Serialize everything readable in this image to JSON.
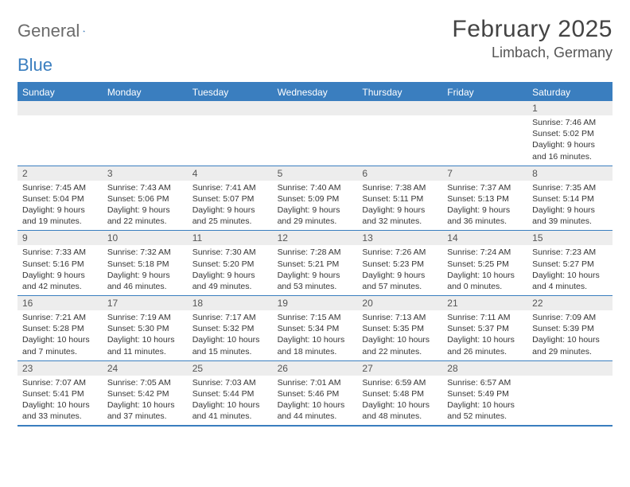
{
  "logo": {
    "word1": "General",
    "word2": "Blue"
  },
  "title": {
    "month": "February 2025",
    "location": "Limbach, Germany"
  },
  "colors": {
    "accent": "#3a7ebf",
    "header_text": "#ffffff",
    "daynum_bg": "#ededed",
    "body_text": "#333333",
    "logo_gray": "#6b6b6b"
  },
  "day_headers": [
    "Sunday",
    "Monday",
    "Tuesday",
    "Wednesday",
    "Thursday",
    "Friday",
    "Saturday"
  ],
  "weeks": [
    [
      {
        "n": "",
        "sr": "",
        "ss": "",
        "dl1": "",
        "dl2": ""
      },
      {
        "n": "",
        "sr": "",
        "ss": "",
        "dl1": "",
        "dl2": ""
      },
      {
        "n": "",
        "sr": "",
        "ss": "",
        "dl1": "",
        "dl2": ""
      },
      {
        "n": "",
        "sr": "",
        "ss": "",
        "dl1": "",
        "dl2": ""
      },
      {
        "n": "",
        "sr": "",
        "ss": "",
        "dl1": "",
        "dl2": ""
      },
      {
        "n": "",
        "sr": "",
        "ss": "",
        "dl1": "",
        "dl2": ""
      },
      {
        "n": "1",
        "sr": "Sunrise: 7:46 AM",
        "ss": "Sunset: 5:02 PM",
        "dl1": "Daylight: 9 hours",
        "dl2": "and 16 minutes."
      }
    ],
    [
      {
        "n": "2",
        "sr": "Sunrise: 7:45 AM",
        "ss": "Sunset: 5:04 PM",
        "dl1": "Daylight: 9 hours",
        "dl2": "and 19 minutes."
      },
      {
        "n": "3",
        "sr": "Sunrise: 7:43 AM",
        "ss": "Sunset: 5:06 PM",
        "dl1": "Daylight: 9 hours",
        "dl2": "and 22 minutes."
      },
      {
        "n": "4",
        "sr": "Sunrise: 7:41 AM",
        "ss": "Sunset: 5:07 PM",
        "dl1": "Daylight: 9 hours",
        "dl2": "and 25 minutes."
      },
      {
        "n": "5",
        "sr": "Sunrise: 7:40 AM",
        "ss": "Sunset: 5:09 PM",
        "dl1": "Daylight: 9 hours",
        "dl2": "and 29 minutes."
      },
      {
        "n": "6",
        "sr": "Sunrise: 7:38 AM",
        "ss": "Sunset: 5:11 PM",
        "dl1": "Daylight: 9 hours",
        "dl2": "and 32 minutes."
      },
      {
        "n": "7",
        "sr": "Sunrise: 7:37 AM",
        "ss": "Sunset: 5:13 PM",
        "dl1": "Daylight: 9 hours",
        "dl2": "and 36 minutes."
      },
      {
        "n": "8",
        "sr": "Sunrise: 7:35 AM",
        "ss": "Sunset: 5:14 PM",
        "dl1": "Daylight: 9 hours",
        "dl2": "and 39 minutes."
      }
    ],
    [
      {
        "n": "9",
        "sr": "Sunrise: 7:33 AM",
        "ss": "Sunset: 5:16 PM",
        "dl1": "Daylight: 9 hours",
        "dl2": "and 42 minutes."
      },
      {
        "n": "10",
        "sr": "Sunrise: 7:32 AM",
        "ss": "Sunset: 5:18 PM",
        "dl1": "Daylight: 9 hours",
        "dl2": "and 46 minutes."
      },
      {
        "n": "11",
        "sr": "Sunrise: 7:30 AM",
        "ss": "Sunset: 5:20 PM",
        "dl1": "Daylight: 9 hours",
        "dl2": "and 49 minutes."
      },
      {
        "n": "12",
        "sr": "Sunrise: 7:28 AM",
        "ss": "Sunset: 5:21 PM",
        "dl1": "Daylight: 9 hours",
        "dl2": "and 53 minutes."
      },
      {
        "n": "13",
        "sr": "Sunrise: 7:26 AM",
        "ss": "Sunset: 5:23 PM",
        "dl1": "Daylight: 9 hours",
        "dl2": "and 57 minutes."
      },
      {
        "n": "14",
        "sr": "Sunrise: 7:24 AM",
        "ss": "Sunset: 5:25 PM",
        "dl1": "Daylight: 10 hours",
        "dl2": "and 0 minutes."
      },
      {
        "n": "15",
        "sr": "Sunrise: 7:23 AM",
        "ss": "Sunset: 5:27 PM",
        "dl1": "Daylight: 10 hours",
        "dl2": "and 4 minutes."
      }
    ],
    [
      {
        "n": "16",
        "sr": "Sunrise: 7:21 AM",
        "ss": "Sunset: 5:28 PM",
        "dl1": "Daylight: 10 hours",
        "dl2": "and 7 minutes."
      },
      {
        "n": "17",
        "sr": "Sunrise: 7:19 AM",
        "ss": "Sunset: 5:30 PM",
        "dl1": "Daylight: 10 hours",
        "dl2": "and 11 minutes."
      },
      {
        "n": "18",
        "sr": "Sunrise: 7:17 AM",
        "ss": "Sunset: 5:32 PM",
        "dl1": "Daylight: 10 hours",
        "dl2": "and 15 minutes."
      },
      {
        "n": "19",
        "sr": "Sunrise: 7:15 AM",
        "ss": "Sunset: 5:34 PM",
        "dl1": "Daylight: 10 hours",
        "dl2": "and 18 minutes."
      },
      {
        "n": "20",
        "sr": "Sunrise: 7:13 AM",
        "ss": "Sunset: 5:35 PM",
        "dl1": "Daylight: 10 hours",
        "dl2": "and 22 minutes."
      },
      {
        "n": "21",
        "sr": "Sunrise: 7:11 AM",
        "ss": "Sunset: 5:37 PM",
        "dl1": "Daylight: 10 hours",
        "dl2": "and 26 minutes."
      },
      {
        "n": "22",
        "sr": "Sunrise: 7:09 AM",
        "ss": "Sunset: 5:39 PM",
        "dl1": "Daylight: 10 hours",
        "dl2": "and 29 minutes."
      }
    ],
    [
      {
        "n": "23",
        "sr": "Sunrise: 7:07 AM",
        "ss": "Sunset: 5:41 PM",
        "dl1": "Daylight: 10 hours",
        "dl2": "and 33 minutes."
      },
      {
        "n": "24",
        "sr": "Sunrise: 7:05 AM",
        "ss": "Sunset: 5:42 PM",
        "dl1": "Daylight: 10 hours",
        "dl2": "and 37 minutes."
      },
      {
        "n": "25",
        "sr": "Sunrise: 7:03 AM",
        "ss": "Sunset: 5:44 PM",
        "dl1": "Daylight: 10 hours",
        "dl2": "and 41 minutes."
      },
      {
        "n": "26",
        "sr": "Sunrise: 7:01 AM",
        "ss": "Sunset: 5:46 PM",
        "dl1": "Daylight: 10 hours",
        "dl2": "and 44 minutes."
      },
      {
        "n": "27",
        "sr": "Sunrise: 6:59 AM",
        "ss": "Sunset: 5:48 PM",
        "dl1": "Daylight: 10 hours",
        "dl2": "and 48 minutes."
      },
      {
        "n": "28",
        "sr": "Sunrise: 6:57 AM",
        "ss": "Sunset: 5:49 PM",
        "dl1": "Daylight: 10 hours",
        "dl2": "and 52 minutes."
      },
      {
        "n": "",
        "sr": "",
        "ss": "",
        "dl1": "",
        "dl2": ""
      }
    ]
  ]
}
